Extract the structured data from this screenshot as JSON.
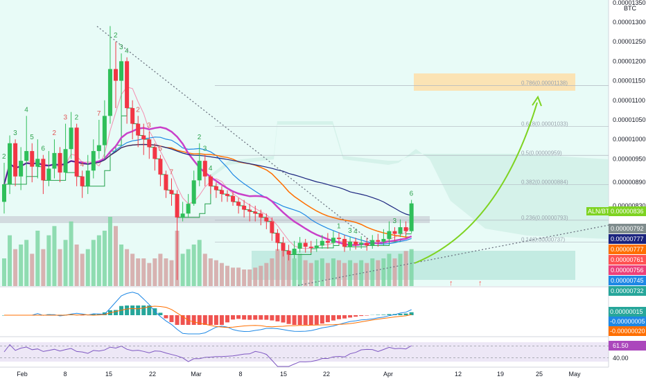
{
  "chart_data": {
    "type": "candlestick",
    "quote_unit": "BTC",
    "price_axis": {
      "ticks": [
        "0.00001350",
        "0.00001300",
        "0.00001250",
        "0.00001200",
        "0.00001150",
        "0.00001100",
        "0.00001050",
        "0.00001000",
        "0.00000950",
        "0.00000890",
        "0.00000830"
      ],
      "price_tag": "0.00000836",
      "price_tag_label": "ALN/BTC",
      "indicator_tags": [
        {
          "value": "0.00000792",
          "color": "#7f8c8d"
        },
        {
          "value": "0.00000777",
          "color": "#1a237e"
        },
        {
          "value": "0.00000777",
          "color": "#ff6f00"
        },
        {
          "value": "0.00000761",
          "color": "#ff5252"
        },
        {
          "value": "0.00000756",
          "color": "#ec407a"
        },
        {
          "value": "0.00000745",
          "color": "#1e88e5"
        },
        {
          "value": "0.00000732",
          "color": "#26a69a"
        }
      ]
    },
    "time_axis": [
      "Feb",
      "8",
      "15",
      "22",
      "Mar",
      "8",
      "15",
      "22",
      "Apr",
      "12",
      "19",
      "25",
      "May"
    ],
    "fib_levels": [
      {
        "label": "0.786(0.00001138)",
        "value": 1.138e-05
      },
      {
        "label": "0.618(0.00001033)",
        "value": 1.033e-05
      },
      {
        "label": "0.5(0.00000959)",
        "value": 9.59e-06
      },
      {
        "label": "0.382(0.00000884)",
        "value": 8.84e-06
      },
      {
        "label": "0.236(0.00000793)",
        "value": 7.93e-06
      },
      {
        "label": "0.14(0.00000737)",
        "value": 7.37e-06
      }
    ],
    "ohlc": [
      [
        8.4e-06,
        8.85e-06,
        9.4e-06,
        8.1e-06
      ],
      [
        8.85e-06,
        9.9e-06,
        1.01e-05,
        8.6e-06
      ],
      [
        9.9e-06,
        9.05e-06,
        1e-05,
        8.8e-06
      ],
      [
        9.05e-06,
        9.45e-06,
        9.8e-06,
        8.7e-06
      ],
      [
        9.45e-06,
        9.7e-06,
        1.06e-05,
        9e-06
      ],
      [
        9.7e-06,
        9.3e-06,
        9.9e-06,
        8.9e-06
      ],
      [
        9.3e-06,
        9.5e-06,
        1e-05,
        9e-06
      ],
      [
        9.5e-06,
        8.95e-06,
        9.6e-06,
        8.6e-06
      ],
      [
        8.95e-06,
        9.25e-06,
        9.7e-06,
        8.8e-06
      ],
      [
        9.25e-06,
        9.65e-06,
        1e-05,
        9e-06
      ],
      [
        9.65e-06,
        9.15e-06,
        9.8e-06,
        8.9e-06
      ],
      [
        9.15e-06,
        9.75e-06,
        1.04e-05,
        9e-06
      ],
      [
        9.75e-06,
        1.03e-05,
        1.07e-05,
        9.5e-06
      ],
      [
        1.03e-05,
        9.05e-06,
        1.04e-05,
        8.8e-06
      ],
      [
        9.05e-06,
        8.8e-06,
        9.2e-06,
        8.5e-06
      ],
      [
        8.8e-06,
        9.2e-06,
        9.6e-06,
        8.6e-06
      ],
      [
        9.2e-06,
        9.7e-06,
        1e-05,
        9e-06
      ],
      [
        9.7e-06,
        9.85e-06,
        1.05e-05,
        9.5e-06
      ],
      [
        9.85e-06,
        1.06e-05,
        1.1e-05,
        9.5e-06
      ],
      [
        1.06e-05,
        1.18e-05,
        1.29e-05,
        1.04e-05
      ],
      [
        1.18e-05,
        1.15e-05,
        1.25e-05,
        1.08e-05
      ],
      [
        1.15e-05,
        1.2e-05,
        1.22e-05,
        1.06e-05
      ],
      [
        1.2e-05,
        1.08e-05,
        1.21e-05,
        1.04e-05
      ],
      [
        1.08e-05,
        1.04e-05,
        1.1e-05,
        1e-05
      ],
      [
        1.04e-05,
        1.01e-05,
        1.06e-05,
        9.8e-06
      ],
      [
        1.01e-05,
        1e-05,
        1.04e-05,
        9.6e-06
      ],
      [
        1e-05,
        9.8e-06,
        1.02e-05,
        9.5e-06
      ],
      [
        9.8e-06,
        9.5e-06,
        9.9e-06,
        9.2e-06
      ],
      [
        9.5e-06,
        9.1e-06,
        9.6e-06,
        8.8e-06
      ],
      [
        9.1e-06,
        8.7e-06,
        9.2e-06,
        8.5e-06
      ],
      [
        8.7e-06,
        8.6e-06,
        9e-06,
        8.3e-06
      ],
      [
        8.6e-06,
        8e-06,
        8.7e-06,
        6.4e-06
      ],
      [
        8e-06,
        8.1e-06,
        8.4e-06,
        7.9e-06
      ],
      [
        8.1e-06,
        8.35e-06,
        8.6e-06,
        8e-06
      ],
      [
        8.35e-06,
        8.95e-06,
        9.2e-06,
        8.3e-06
      ],
      [
        8.95e-06,
        9.45e-06,
        9.9e-06,
        8.8e-06
      ],
      [
        9.45e-06,
        9.05e-06,
        9.6e-06,
        8.8e-06
      ],
      [
        9.05e-06,
        8.8e-06,
        9.1e-06,
        8.6e-06
      ],
      [
        8.8e-06,
        8.7e-06,
        8.9e-06,
        8.5e-06
      ],
      [
        8.7e-06,
        8.6e-06,
        8.8e-06,
        8.4e-06
      ],
      [
        8.6e-06,
        8.55e-06,
        8.7e-06,
        8.4e-06
      ],
      [
        8.55e-06,
        8.4e-06,
        8.65e-06,
        8.3e-06
      ],
      [
        8.4e-06,
        8.3e-06,
        8.5e-06,
        8.1e-06
      ],
      [
        8.3e-06,
        8.2e-06,
        8.45e-06,
        8e-06
      ],
      [
        8.2e-06,
        8.15e-06,
        8.35e-06,
        7.9e-06
      ],
      [
        8.15e-06,
        8.1e-06,
        8.3e-06,
        7.9e-06
      ],
      [
        8.1e-06,
        8e-06,
        8.2e-06,
        7.8e-06
      ],
      [
        8e-06,
        7.9e-06,
        8.1e-06,
        7.7e-06
      ],
      [
        7.9e-06,
        7.6e-06,
        8e-06,
        7.4e-06
      ],
      [
        7.6e-06,
        7.35e-06,
        7.7e-06,
        7.15e-06
      ],
      [
        7.35e-06,
        7.15e-06,
        7.5e-06,
        7e-06
      ],
      [
        7.15e-06,
        7.05e-06,
        7.3e-06,
        6.9e-06
      ],
      [
        7.05e-06,
        7.2e-06,
        7.4e-06,
        6.95e-06
      ],
      [
        7.2e-06,
        7.35e-06,
        7.5e-06,
        7.1e-06
      ],
      [
        7.35e-06,
        7.25e-06,
        7.45e-06,
        7.1e-06
      ],
      [
        7.25e-06,
        7.22e-06,
        7.4e-06,
        7.1e-06
      ],
      [
        7.22e-06,
        7.28e-06,
        7.45e-06,
        7.12e-06
      ],
      [
        7.28e-06,
        7.4e-06,
        7.55e-06,
        7.2e-06
      ],
      [
        7.4e-06,
        7.35e-06,
        7.6e-06,
        7.2e-06
      ],
      [
        7.35e-06,
        7.48e-06,
        7.65e-06,
        7.25e-06
      ],
      [
        7.48e-06,
        7.45e-06,
        7.62e-06,
        7.3e-06
      ],
      [
        7.45e-06,
        7.25e-06,
        7.55e-06,
        7.12e-06
      ],
      [
        7.25e-06,
        7.38e-06,
        7.5e-06,
        7.15e-06
      ],
      [
        7.38e-06,
        7.3e-06,
        7.48e-06,
        7.18e-06
      ],
      [
        7.3e-06,
        7.35e-06,
        7.52e-06,
        7.2e-06
      ],
      [
        7.35e-06,
        7.28e-06,
        7.48e-06,
        7.15e-06
      ],
      [
        7.28e-06,
        7.42e-06,
        7.55e-06,
        7.2e-06
      ],
      [
        7.42e-06,
        7.38e-06,
        7.58e-06,
        7.25e-06
      ],
      [
        7.38e-06,
        7.45e-06,
        7.7e-06,
        7.28e-06
      ],
      [
        7.45e-06,
        7.65e-06,
        7.9e-06,
        7.35e-06
      ],
      [
        7.65e-06,
        7.58e-06,
        7.75e-06,
        7.4e-06
      ],
      [
        7.58e-06,
        7.75e-06,
        7.95e-06,
        7.5e-06
      ],
      [
        7.75e-06,
        7.65e-06,
        7.9e-06,
        7.55e-06
      ],
      [
        7.65e-06,
        8.36e-06,
        8.45e-06,
        7.6e-06
      ]
    ],
    "counts": [
      {
        "i": 0,
        "t": "2",
        "up": true
      },
      {
        "i": 2,
        "t": "3",
        "up": true
      },
      {
        "i": 4,
        "t": "4",
        "up": true
      },
      {
        "i": 5,
        "t": "5",
        "up": true
      },
      {
        "i": 7,
        "t": "6",
        "up": true
      },
      {
        "i": 9,
        "t": "2",
        "up": false
      },
      {
        "i": 11,
        "t": "3",
        "up": false
      },
      {
        "i": 13,
        "t": "2",
        "up": true
      },
      {
        "i": 14,
        "t": "4",
        "up": false
      },
      {
        "i": 17,
        "t": "7",
        "up": false
      },
      {
        "i": 20,
        "t": "2",
        "up": true
      },
      {
        "i": 21,
        "t": "3",
        "up": true
      },
      {
        "i": 22,
        "t": "4",
        "up": true
      },
      {
        "i": 24,
        "t": "2",
        "up": false
      },
      {
        "i": 26,
        "t": "3",
        "up": false
      },
      {
        "i": 28,
        "t": "5",
        "up": false
      },
      {
        "i": 30,
        "t": "7",
        "up": false
      },
      {
        "i": 35,
        "t": "2",
        "up": true
      },
      {
        "i": 36,
        "t": "3",
        "up": true
      },
      {
        "i": 37,
        "t": "4",
        "up": true
      },
      {
        "i": 60,
        "t": "1",
        "up": true
      },
      {
        "i": 62,
        "t": "3",
        "up": true
      },
      {
        "i": 63,
        "t": "4",
        "up": true
      },
      {
        "i": 70,
        "t": "3",
        "up": true
      },
      {
        "i": 73,
        "t": "6",
        "up": true
      }
    ],
    "volume": [
      30,
      55,
      40,
      45,
      50,
      35,
      60,
      40,
      55,
      65,
      40,
      50,
      70,
      45,
      35,
      40,
      50,
      55,
      60,
      75,
      65,
      45,
      40,
      35,
      30,
      30,
      25,
      30,
      35,
      30,
      28,
      60,
      35,
      40,
      45,
      50,
      35,
      30,
      28,
      25,
      22,
      20,
      20,
      18,
      18,
      20,
      22,
      25,
      30,
      40,
      45,
      35,
      30,
      35,
      28,
      25,
      28,
      30,
      25,
      30,
      28,
      25,
      28,
      25,
      28,
      25,
      30,
      28,
      30,
      35,
      30,
      35,
      38,
      40
    ],
    "macd_tags": [
      {
        "value": "0.00000015",
        "color": "#26a69a"
      },
      {
        "value": "-0.00000005",
        "color": "#1e88e5"
      },
      {
        "value": "-0.00000020",
        "color": "#ff6f00"
      }
    ],
    "rsi": {
      "value": "61.50",
      "level": "40.00"
    }
  }
}
